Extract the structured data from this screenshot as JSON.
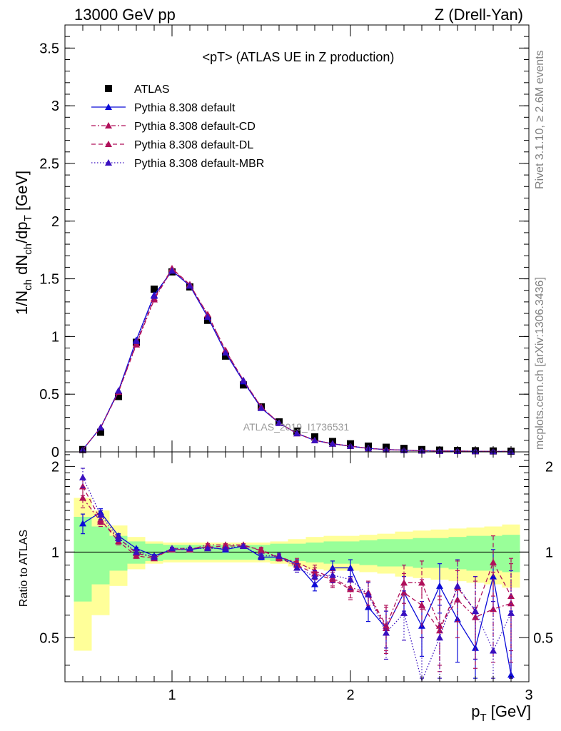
{
  "header": {
    "left": "13000 GeV pp",
    "right": "Z (Drell-Yan)"
  },
  "side_text": {
    "top": "Rivet 3.1.10, ≥ 2.6M events",
    "bottom": "mcplots.cern.ch [arXiv:1306.3436]"
  },
  "colors": {
    "data": "#000000",
    "default": "#0a0ad8",
    "cd": "#b0105a",
    "dl": "#b0105a",
    "mbr": "#3a10c0",
    "band_inner": "#99ff99",
    "band_outer": "#ffff99"
  },
  "chart_data": [
    {
      "type": "scatter",
      "title": "<pT> (ATLAS UE in Z production)",
      "watermark": "ATLAS_2019_I1736531",
      "xlabel": "p_T [GeV]",
      "ylabel": "1/N_ch dN_ch/dp_T [GeV]",
      "ylim": [
        0,
        3.7
      ],
      "xlim": [
        0.4,
        3.0
      ],
      "yticks": [
        0,
        0.5,
        1,
        1.5,
        2,
        2.5,
        3,
        3.5
      ],
      "ytick_labels": [
        "0",
        "0.5",
        "1",
        "1.5",
        "2",
        "2.5",
        "3",
        "3.5"
      ],
      "legend_position": "top-left",
      "x": [
        0.5,
        0.6,
        0.7,
        0.8,
        0.9,
        1.0,
        1.1,
        1.2,
        1.3,
        1.4,
        1.5,
        1.6,
        1.7,
        1.8,
        1.9,
        2.0,
        2.1,
        2.2,
        2.3,
        2.4,
        2.5,
        2.6,
        2.7,
        2.8,
        2.9
      ],
      "series": [
        {
          "name": "ATLAS",
          "style": "data",
          "values": [
            0.02,
            0.17,
            0.48,
            0.95,
            1.41,
            1.56,
            1.43,
            1.14,
            0.83,
            0.58,
            0.39,
            0.26,
            0.18,
            0.13,
            0.09,
            0.07,
            0.05,
            0.04,
            0.03,
            0.02,
            0.015,
            0.012,
            0.01,
            0.008,
            0.006
          ]
        },
        {
          "name": "Pythia 8.308 default",
          "style": "default",
          "values": [
            0.02,
            0.21,
            0.53,
            0.97,
            1.36,
            1.57,
            1.44,
            1.17,
            0.86,
            0.61,
            0.38,
            0.25,
            0.16,
            0.1,
            0.07,
            0.05,
            0.03,
            0.02,
            0.015,
            0.01,
            0.008,
            0.007,
            0.005,
            0.004,
            0.003
          ]
        },
        {
          "name": "Pythia 8.308 default-CD",
          "style": "cd",
          "values": [
            0.02,
            0.21,
            0.52,
            0.93,
            1.32,
            1.58,
            1.45,
            1.19,
            0.88,
            0.62,
            0.39,
            0.25,
            0.16,
            0.1,
            0.07,
            0.05,
            0.03,
            0.02,
            0.015,
            0.01,
            0.008,
            0.007,
            0.005,
            0.004,
            0.003
          ]
        },
        {
          "name": "Pythia 8.308 default-DL",
          "style": "dl",
          "values": [
            0.02,
            0.21,
            0.52,
            0.94,
            1.33,
            1.59,
            1.45,
            1.19,
            0.88,
            0.62,
            0.39,
            0.25,
            0.16,
            0.1,
            0.07,
            0.05,
            0.03,
            0.02,
            0.015,
            0.01,
            0.008,
            0.007,
            0.005,
            0.004,
            0.003
          ]
        },
        {
          "name": "Pythia 8.308 default-MBR",
          "style": "mbr",
          "values": [
            0.02,
            0.21,
            0.53,
            0.96,
            1.35,
            1.57,
            1.44,
            1.17,
            0.86,
            0.62,
            0.38,
            0.25,
            0.16,
            0.1,
            0.07,
            0.05,
            0.03,
            0.02,
            0.015,
            0.01,
            0.008,
            0.007,
            0.005,
            0.004,
            0.003
          ]
        }
      ]
    },
    {
      "type": "line",
      "ylabel": "Ratio to ATLAS",
      "xlabel": "p_T [GeV]",
      "ylim": [
        0.35,
        2.25
      ],
      "xlim": [
        0.4,
        3.0
      ],
      "yticks": [
        0.5,
        1,
        2
      ],
      "ytick_labels": [
        "0.5",
        "1",
        "2"
      ],
      "xticks": [
        1,
        2,
        3
      ],
      "xtick_labels": [
        "1",
        "2",
        "3"
      ],
      "reference_line": 1,
      "x": [
        0.5,
        0.6,
        0.7,
        0.8,
        0.9,
        1.0,
        1.1,
        1.2,
        1.3,
        1.4,
        1.5,
        1.6,
        1.7,
        1.8,
        1.9,
        2.0,
        2.1,
        2.2,
        2.3,
        2.4,
        2.5,
        2.6,
        2.7,
        2.8,
        2.9
      ],
      "bands": {
        "inner_half_width": [
          0.33,
          0.23,
          0.14,
          0.09,
          0.07,
          0.06,
          0.06,
          0.06,
          0.06,
          0.06,
          0.06,
          0.07,
          0.07,
          0.08,
          0.09,
          0.09,
          0.1,
          0.11,
          0.11,
          0.12,
          0.12,
          0.13,
          0.14,
          0.14,
          0.15
        ],
        "outer_half_width": [
          0.55,
          0.4,
          0.24,
          0.13,
          0.09,
          0.08,
          0.08,
          0.08,
          0.08,
          0.08,
          0.08,
          0.09,
          0.11,
          0.13,
          0.14,
          0.14,
          0.15,
          0.16,
          0.18,
          0.19,
          0.2,
          0.21,
          0.22,
          0.23,
          0.25
        ]
      },
      "series": [
        {
          "name": "Pythia 8.308 default",
          "style": "default",
          "values": [
            1.26,
            1.38,
            1.14,
            1.03,
            0.97,
            1.02,
            1.02,
            1.04,
            1.02,
            1.05,
            0.96,
            0.96,
            0.91,
            0.77,
            0.88,
            0.88,
            0.64,
            0.54,
            0.72,
            0.55,
            0.76,
            0.58,
            0.46,
            0.82,
            0.37
          ],
          "errors": [
            0.1,
            0.04,
            0.02,
            0.01,
            0.01,
            0.01,
            0.01,
            0.01,
            0.01,
            0.01,
            0.02,
            0.02,
            0.03,
            0.04,
            0.05,
            0.06,
            0.07,
            0.08,
            0.1,
            0.12,
            0.15,
            0.17,
            0.18,
            0.2,
            0.25
          ]
        },
        {
          "name": "Pythia 8.308 default-CD",
          "style": "cd",
          "values": [
            1.55,
            1.28,
            1.12,
            0.99,
            0.96,
            1.02,
            1.02,
            1.06,
            1.06,
            1.06,
            1.01,
            0.96,
            0.92,
            0.86,
            0.81,
            0.75,
            0.72,
            0.55,
            0.78,
            0.78,
            0.55,
            0.68,
            0.59,
            0.63,
            0.66
          ],
          "errors": [
            0.12,
            0.05,
            0.03,
            0.02,
            0.01,
            0.01,
            0.01,
            0.01,
            0.01,
            0.01,
            0.02,
            0.02,
            0.03,
            0.04,
            0.05,
            0.06,
            0.07,
            0.1,
            0.12,
            0.15,
            0.15,
            0.18,
            0.2,
            0.22,
            0.25
          ]
        },
        {
          "name": "Pythia 8.308 default-DL",
          "style": "dl",
          "values": [
            1.7,
            1.3,
            1.09,
            0.97,
            0.95,
            1.03,
            1.03,
            1.04,
            1.05,
            1.05,
            1.02,
            0.95,
            0.9,
            0.84,
            0.8,
            0.74,
            0.71,
            0.54,
            0.72,
            0.65,
            0.53,
            0.75,
            0.62,
            0.92,
            0.7
          ],
          "errors": [
            0.12,
            0.05,
            0.03,
            0.02,
            0.01,
            0.01,
            0.01,
            0.01,
            0.01,
            0.01,
            0.02,
            0.02,
            0.03,
            0.04,
            0.05,
            0.06,
            0.07,
            0.1,
            0.12,
            0.15,
            0.15,
            0.18,
            0.2,
            0.22,
            0.25
          ]
        },
        {
          "name": "Pythia 8.308 default-MBR",
          "style": "mbr",
          "values": [
            1.83,
            1.35,
            1.12,
            1.0,
            0.96,
            1.03,
            1.03,
            1.03,
            1.03,
            1.05,
            0.97,
            0.97,
            0.88,
            0.82,
            0.83,
            0.8,
            0.71,
            0.52,
            0.61,
            0.35,
            0.5,
            0.76,
            0.62,
            0.45,
            0.61
          ],
          "errors": [
            0.14,
            0.05,
            0.03,
            0.02,
            0.01,
            0.01,
            0.01,
            0.01,
            0.01,
            0.01,
            0.02,
            0.02,
            0.03,
            0.04,
            0.05,
            0.06,
            0.07,
            0.1,
            0.12,
            0.15,
            0.15,
            0.18,
            0.2,
            0.22,
            0.25
          ]
        }
      ]
    }
  ]
}
